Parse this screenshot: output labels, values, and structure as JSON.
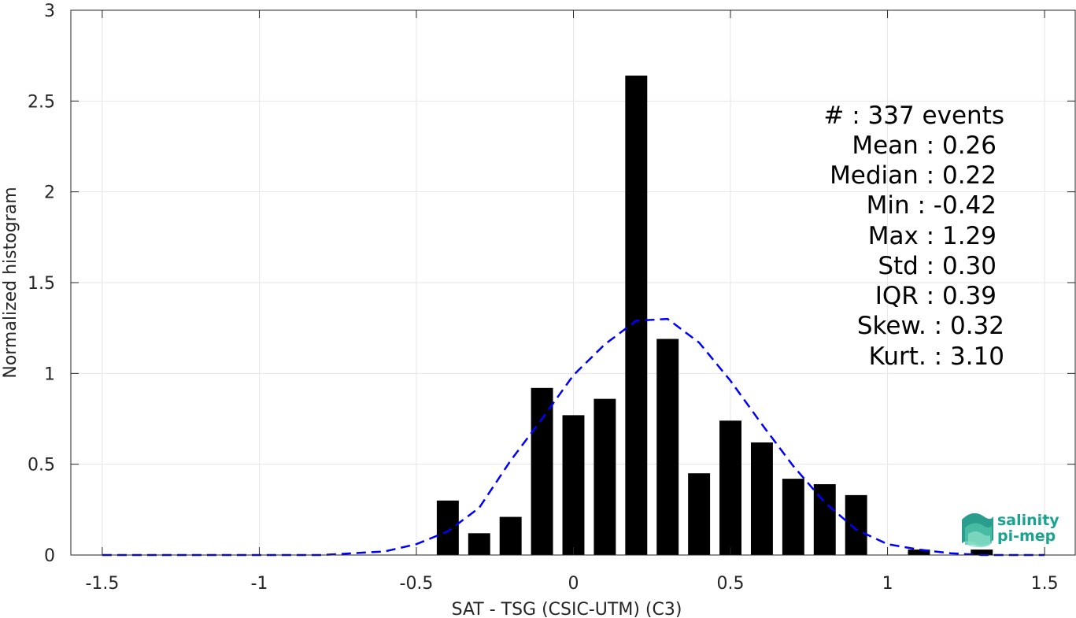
{
  "chart_data": {
    "type": "bar",
    "xlabel": "SAT - TSG (CSIC-UTM) (C3)",
    "ylabel": "Normalized histogram",
    "xlim": [
      -1.6,
      1.6
    ],
    "ylim": [
      0,
      3
    ],
    "xticks": [
      -1.5,
      -1,
      -0.5,
      0,
      0.5,
      1,
      1.5
    ],
    "xtick_labels": [
      "-1.5",
      "-1",
      "-0.5",
      "0",
      "0.5",
      "1",
      "1.5"
    ],
    "yticks": [
      0,
      0.5,
      1,
      1.5,
      2,
      2.5,
      3
    ],
    "ytick_labels": [
      "0",
      "0.5",
      "1",
      "1.5",
      "2",
      "2.5",
      "3"
    ],
    "grid": true,
    "bar_width": 0.07,
    "bars": {
      "x": [
        -0.4,
        -0.3,
        -0.2,
        -0.1,
        0.0,
        0.1,
        0.2,
        0.3,
        0.4,
        0.5,
        0.6,
        0.7,
        0.8,
        0.9,
        1.0,
        1.1,
        1.2,
        1.3
      ],
      "values": [
        0.3,
        0.12,
        0.21,
        0.92,
        0.77,
        0.86,
        2.64,
        1.19,
        0.45,
        0.74,
        0.62,
        0.42,
        0.39,
        0.33,
        0.0,
        0.03,
        0.0,
        0.03
      ],
      "color": "#000000"
    },
    "fit_curve": {
      "style": "dashed",
      "color": "#0000ff",
      "x": [
        -1.5,
        -1.4,
        -1.3,
        -1.2,
        -1.1,
        -1.0,
        -0.9,
        -0.8,
        -0.7,
        -0.6,
        -0.5,
        -0.4,
        -0.3,
        -0.2,
        -0.1,
        0.0,
        0.1,
        0.2,
        0.3,
        0.4,
        0.5,
        0.6,
        0.7,
        0.8,
        0.9,
        1.0,
        1.1,
        1.2,
        1.3,
        1.4,
        1.5
      ],
      "y": [
        0.0,
        0.0,
        0.0,
        0.0,
        0.0,
        0.0,
        0.0,
        0.0,
        0.01,
        0.02,
        0.06,
        0.13,
        0.26,
        0.52,
        0.75,
        0.99,
        1.16,
        1.29,
        1.3,
        1.17,
        0.96,
        0.72,
        0.49,
        0.29,
        0.14,
        0.06,
        0.03,
        0.01,
        0.0,
        0.0,
        0.0
      ]
    },
    "stats_box": {
      "placement": "top-right",
      "lines": [
        "#  : 337 events",
        "Mean : 0.26",
        "Median : 0.22",
        "Min : -0.42",
        "Max : 1.29",
        "Std : 0.30",
        "IQR : 0.39",
        "Skew. : 0.32",
        "Kurt. : 3.10"
      ]
    }
  },
  "logo": {
    "line1": "salinity",
    "line2": "pi-mep",
    "color": "#1aa38f"
  }
}
